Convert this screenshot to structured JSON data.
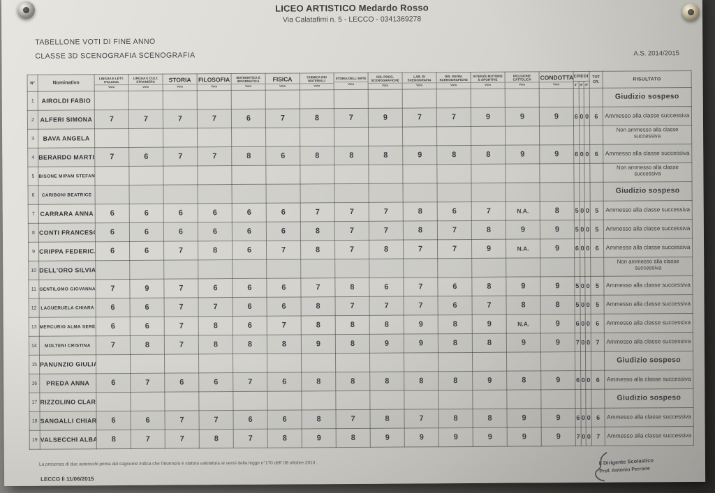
{
  "colors": {
    "paper": "#dcdbd6",
    "backdrop": "#6e6d68",
    "ink": "#3c3c3c"
  },
  "page": {
    "school_name": "LICEO ARTISTICO Medardo Rosso",
    "school_address": "Via Calatafimi n. 5 - LECCO - 0341369278",
    "doc_title_line1": "TABELLONE VOTI DI FINE ANNO",
    "doc_title_line2": "CLASSE 3D SCENOGRAFIA SCENOGRAFIA",
    "school_year": "A.S. 2014/2015"
  },
  "table": {
    "col_num_label": "N°",
    "col_name_label": "Nominativo",
    "vote_sublabel": "Voto",
    "subjects": [
      {
        "label": "LINGUA E LETT. ITALIANA",
        "size": "sm"
      },
      {
        "label": "LINGUA E CULT. STRANIERA",
        "size": "sm"
      },
      {
        "label": "STORIA",
        "size": "lg"
      },
      {
        "label": "FILOSOFIA",
        "size": "lg"
      },
      {
        "label": "MATEMATICA E INFORMATICA",
        "size": "sm"
      },
      {
        "label": "FISICA",
        "size": "lg"
      },
      {
        "label": "CHIMICA DEI MATERIALI",
        "size": "sm"
      },
      {
        "label": "STORIA DELL'ARTE",
        "size": "sm"
      },
      {
        "label": "DIS. PROG. SCENOGRAFICHE",
        "size": "sm"
      },
      {
        "label": "LAB. DI SCENOGRAFIA",
        "size": "sm"
      },
      {
        "label": "DIS. GEOM. SCENOGRAFICHE",
        "size": "sm"
      },
      {
        "label": "SCIENZE MOTORIE E SPORTIVE",
        "size": "sm"
      },
      {
        "label": "RELIGIONE CATTOLICA",
        "size": "sm"
      },
      {
        "label": "CONDOTTA",
        "size": "lg"
      }
    ],
    "crediti_label": "CREDITI",
    "crediti_sub": [
      "3°",
      "4°",
      "5°"
    ],
    "tot_label": "TOT CR.",
    "risultato_label": "RISULTATO",
    "rows": [
      {
        "n": "1",
        "name": "AIROLDI FABIO",
        "grades": [
          "",
          "",
          "",
          "",
          "",
          "",
          "",
          "",
          "",
          "",
          "",
          "",
          "",
          ""
        ],
        "credits": [
          "",
          "",
          ""
        ],
        "tot": "",
        "result": "Giudizio sospeso",
        "result_type": "sosp"
      },
      {
        "n": "2",
        "name": "ALFERI SIMONA",
        "grades": [
          "7",
          "7",
          "7",
          "7",
          "6",
          "7",
          "8",
          "7",
          "9",
          "7",
          "7",
          "9",
          "9",
          "9"
        ],
        "credits": [
          "6",
          "0",
          "0"
        ],
        "tot": "6",
        "result": "Ammesso alla classe successiva",
        "result_type": "ammesso"
      },
      {
        "n": "3",
        "name": "BAVA ANGELA",
        "grades": [
          "",
          "",
          "",
          "",
          "",
          "",
          "",
          "",
          "",
          "",
          "",
          "",
          "",
          ""
        ],
        "credits": [
          "",
          "",
          ""
        ],
        "tot": "",
        "result": "Non ammesso alla classe successiva",
        "result_type": "non"
      },
      {
        "n": "4",
        "name": "BERARDO MARTINA",
        "grades": [
          "7",
          "6",
          "7",
          "7",
          "8",
          "6",
          "8",
          "8",
          "8",
          "9",
          "8",
          "8",
          "9",
          "9"
        ],
        "credits": [
          "6",
          "0",
          "0"
        ],
        "tot": "6",
        "result": "Ammesso alla classe successiva",
        "result_type": "ammesso"
      },
      {
        "n": "5",
        "name": "BISONE MIPAM STEFANO",
        "grades": [
          "",
          "",
          "",
          "",
          "",
          "",
          "",
          "",
          "",
          "",
          "",
          "",
          "",
          ""
        ],
        "credits": [
          "",
          "",
          ""
        ],
        "tot": "",
        "result": "Non ammesso alla classe successiva",
        "result_type": "non"
      },
      {
        "n": "6",
        "name": "CARIBONI BEATRICE",
        "grades": [
          "",
          "",
          "",
          "",
          "",
          "",
          "",
          "",
          "",
          "",
          "",
          "",
          "",
          ""
        ],
        "credits": [
          "",
          "",
          ""
        ],
        "tot": "",
        "result": "Giudizio sospeso",
        "result_type": "sosp"
      },
      {
        "n": "7",
        "name": "CARRARA ANNA",
        "grades": [
          "6",
          "6",
          "6",
          "6",
          "6",
          "6",
          "7",
          "7",
          "7",
          "8",
          "6",
          "7",
          "N.A.",
          "8"
        ],
        "credits": [
          "5",
          "0",
          "0"
        ],
        "tot": "5",
        "result": "Ammesso alla classe successiva",
        "result_type": "ammesso"
      },
      {
        "n": "8",
        "name": "CONTI FRANCESCA",
        "grades": [
          "6",
          "6",
          "6",
          "6",
          "6",
          "6",
          "8",
          "7",
          "7",
          "8",
          "7",
          "8",
          "9",
          "9"
        ],
        "credits": [
          "5",
          "0",
          "0"
        ],
        "tot": "5",
        "result": "Ammesso alla classe successiva",
        "result_type": "ammesso"
      },
      {
        "n": "9",
        "name": "CRIPPA FEDERICA",
        "grades": [
          "6",
          "6",
          "7",
          "8",
          "6",
          "7",
          "8",
          "7",
          "8",
          "7",
          "7",
          "9",
          "N.A.",
          "9"
        ],
        "credits": [
          "6",
          "0",
          "0"
        ],
        "tot": "6",
        "result": "Ammesso alla classe successiva",
        "result_type": "ammesso"
      },
      {
        "n": "10",
        "name": "DELL'ORO SILVIA",
        "grades": [
          "",
          "",
          "",
          "",
          "",
          "",
          "",
          "",
          "",
          "",
          "",
          "",
          "",
          ""
        ],
        "credits": [
          "",
          "",
          ""
        ],
        "tot": "",
        "result": "Non ammesso alla classe successiva",
        "result_type": "non"
      },
      {
        "n": "11",
        "name": "GENTILOMO GIOVANNA",
        "grades": [
          "7",
          "9",
          "7",
          "6",
          "6",
          "6",
          "7",
          "8",
          "6",
          "7",
          "6",
          "8",
          "9",
          "9"
        ],
        "credits": [
          "5",
          "0",
          "0"
        ],
        "tot": "5",
        "result": "Ammesso alla classe successiva",
        "result_type": "ammesso"
      },
      {
        "n": "12",
        "name": "LAGUERUELA CHIARA",
        "grades": [
          "6",
          "6",
          "7",
          "7",
          "6",
          "6",
          "8",
          "7",
          "7",
          "7",
          "6",
          "7",
          "8",
          "8"
        ],
        "credits": [
          "5",
          "0",
          "0"
        ],
        "tot": "5",
        "result": "Ammesso alla classe successiva",
        "result_type": "ammesso"
      },
      {
        "n": "13",
        "name": "MERCURIO ALMA SERENA",
        "grades": [
          "6",
          "6",
          "7",
          "8",
          "6",
          "7",
          "8",
          "8",
          "8",
          "9",
          "8",
          "9",
          "N.A.",
          "9"
        ],
        "credits": [
          "6",
          "0",
          "0"
        ],
        "tot": "6",
        "result": "Ammesso alla classe successiva",
        "result_type": "ammesso"
      },
      {
        "n": "14",
        "name": "MOLTENI CRISTINA",
        "grades": [
          "7",
          "8",
          "7",
          "8",
          "8",
          "8",
          "9",
          "8",
          "9",
          "9",
          "8",
          "8",
          "9",
          "9"
        ],
        "credits": [
          "7",
          "0",
          "0"
        ],
        "tot": "7",
        "result": "Ammesso alla classe successiva",
        "result_type": "ammesso"
      },
      {
        "n": "15",
        "name": "PANUNZIO GIULIA",
        "grades": [
          "",
          "",
          "",
          "",
          "",
          "",
          "",
          "",
          "",
          "",
          "",
          "",
          "",
          ""
        ],
        "credits": [
          "",
          "",
          ""
        ],
        "tot": "",
        "result": "Giudizio sospeso",
        "result_type": "sosp"
      },
      {
        "n": "16",
        "name": "PREDA ANNA",
        "grades": [
          "6",
          "7",
          "6",
          "6",
          "7",
          "6",
          "8",
          "8",
          "8",
          "8",
          "8",
          "9",
          "8",
          "9"
        ],
        "credits": [
          "6",
          "0",
          "0"
        ],
        "tot": "6",
        "result": "Ammesso alla classe successiva",
        "result_type": "ammesso"
      },
      {
        "n": "17",
        "name": "RIZZOLINO CLARA",
        "grades": [
          "",
          "",
          "",
          "",
          "",
          "",
          "",
          "",
          "",
          "",
          "",
          "",
          "",
          ""
        ],
        "credits": [
          "",
          "",
          ""
        ],
        "tot": "",
        "result": "Giudizio sospeso",
        "result_type": "sosp"
      },
      {
        "n": "18",
        "name": "SANGALLI CHIARA",
        "grades": [
          "6",
          "6",
          "7",
          "7",
          "6",
          "6",
          "8",
          "7",
          "8",
          "7",
          "8",
          "8",
          "9",
          "9"
        ],
        "credits": [
          "6",
          "0",
          "0"
        ],
        "tot": "6",
        "result": "Ammesso alla classe successiva",
        "result_type": "ammesso"
      },
      {
        "n": "19",
        "name": "VALSECCHI ALBA",
        "grades": [
          "8",
          "7",
          "7",
          "8",
          "7",
          "8",
          "9",
          "8",
          "9",
          "9",
          "9",
          "9",
          "9",
          "9"
        ],
        "credits": [
          "7",
          "0",
          "0"
        ],
        "tot": "7",
        "result": "Ammesso alla classe successiva",
        "result_type": "ammesso"
      }
    ]
  },
  "footer": {
    "note": "La presenza di due asterischi prima del cognome indica che l'alunno/a è stato/a valutato/a ai sensi della legge n°170 dell' 08 ottobre 2010 .",
    "place_date": "LECCO lì 11/06/2015",
    "sign_role": "Il Dirigente Scolastico",
    "sign_name": "Prof. Antonio Perrone"
  }
}
